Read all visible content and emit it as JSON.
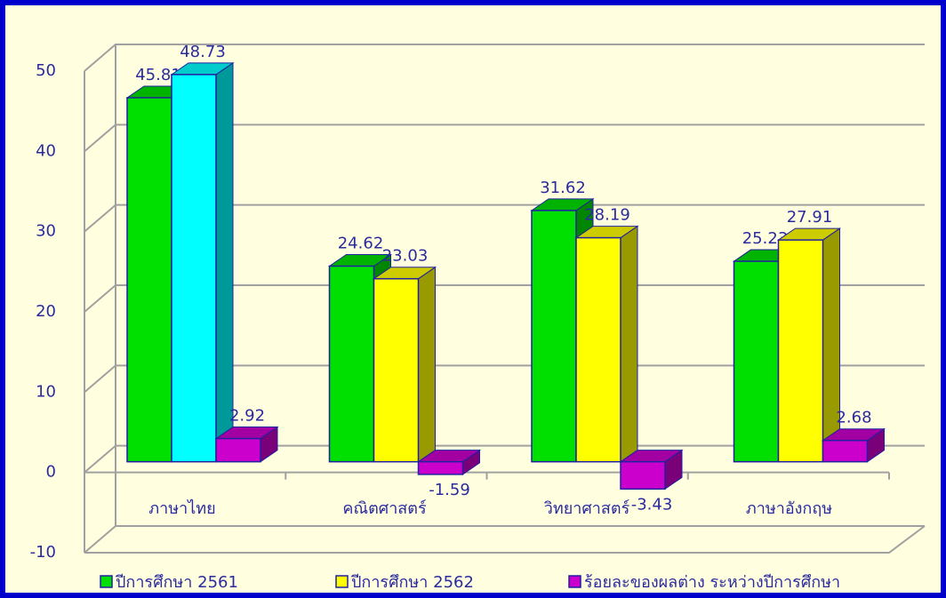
{
  "chart_data": {
    "type": "bar3d",
    "categories": [
      "ภาษาไทย",
      "คณิตศาสตร์",
      "วิทยาศาสตร์",
      "ภาษาอังกฤษ"
    ],
    "series": [
      {
        "name": "ปีการศึกษา 2561",
        "color": "#00e000",
        "values": [
          45.81,
          24.62,
          31.62,
          25.23
        ]
      },
      {
        "name": "ปีการศึกษา 2562",
        "color": "#ffff00",
        "point_colors": [
          "#00ffff",
          "#ffff00",
          "#ffff00",
          "#ffff00"
        ],
        "values": [
          48.73,
          23.03,
          28.19,
          27.91
        ]
      },
      {
        "name": "ร้อยละของผลต่าง ระหว่างปีการศึกษา",
        "color": "#cc00cc",
        "values": [
          2.92,
          -1.59,
          -3.43,
          2.68
        ]
      }
    ],
    "ylim": [
      -10,
      50
    ],
    "yticks": [
      -10,
      0,
      10,
      20,
      30,
      40,
      50
    ],
    "grid": true,
    "legend": "bottom"
  }
}
